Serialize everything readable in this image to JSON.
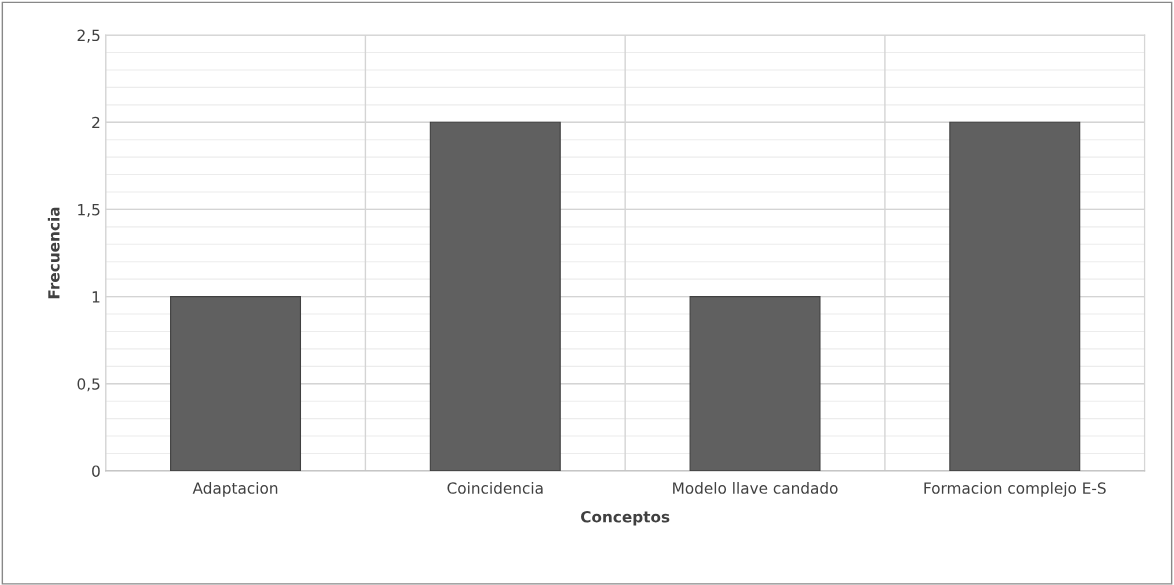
{
  "chart_data": {
    "type": "bar",
    "xlabel": "Conceptos",
    "ylabel": "Frecuencia",
    "categories": [
      "Adaptacion",
      "Coincidencia",
      "Modelo llave candado",
      "Formacion complejo E-S"
    ],
    "values": [
      1,
      2,
      1,
      2
    ],
    "color": "#606060",
    "ylim": [
      0,
      2.5
    ],
    "yticks": [
      0,
      {
        "value": 0.5,
        "label": "0,5"
      },
      1,
      {
        "value": 1.5,
        "label": "1,5"
      },
      2,
      {
        "value": 2.5,
        "label": "2,5"
      }
    ],
    "grid": true
  }
}
